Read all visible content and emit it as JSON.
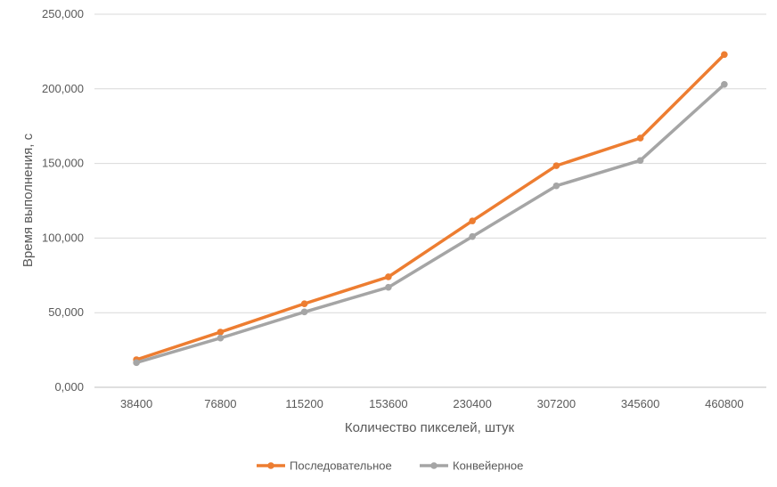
{
  "chart_data": {
    "type": "line",
    "title": "",
    "xlabel": "Количество пикселей, штук",
    "ylabel": "Время выполнения, с",
    "categories": [
      "38400",
      "76800",
      "115200",
      "153600",
      "230400",
      "307200",
      "345600",
      "460800"
    ],
    "ylim": [
      0,
      250
    ],
    "yticks": [
      "0,000",
      "50,000",
      "100,000",
      "150,000",
      "200,000",
      "250,000"
    ],
    "grid": true,
    "legend_position": "bottom",
    "series": [
      {
        "name": "Последовательное",
        "color": "#ED7D31",
        "values": [
          18.5,
          37,
          56,
          74,
          111.5,
          148.5,
          167,
          223
        ]
      },
      {
        "name": "Конвейерное",
        "color": "#A5A5A5",
        "values": [
          16.5,
          33,
          50.5,
          67,
          101,
          135,
          152,
          203
        ]
      }
    ]
  }
}
